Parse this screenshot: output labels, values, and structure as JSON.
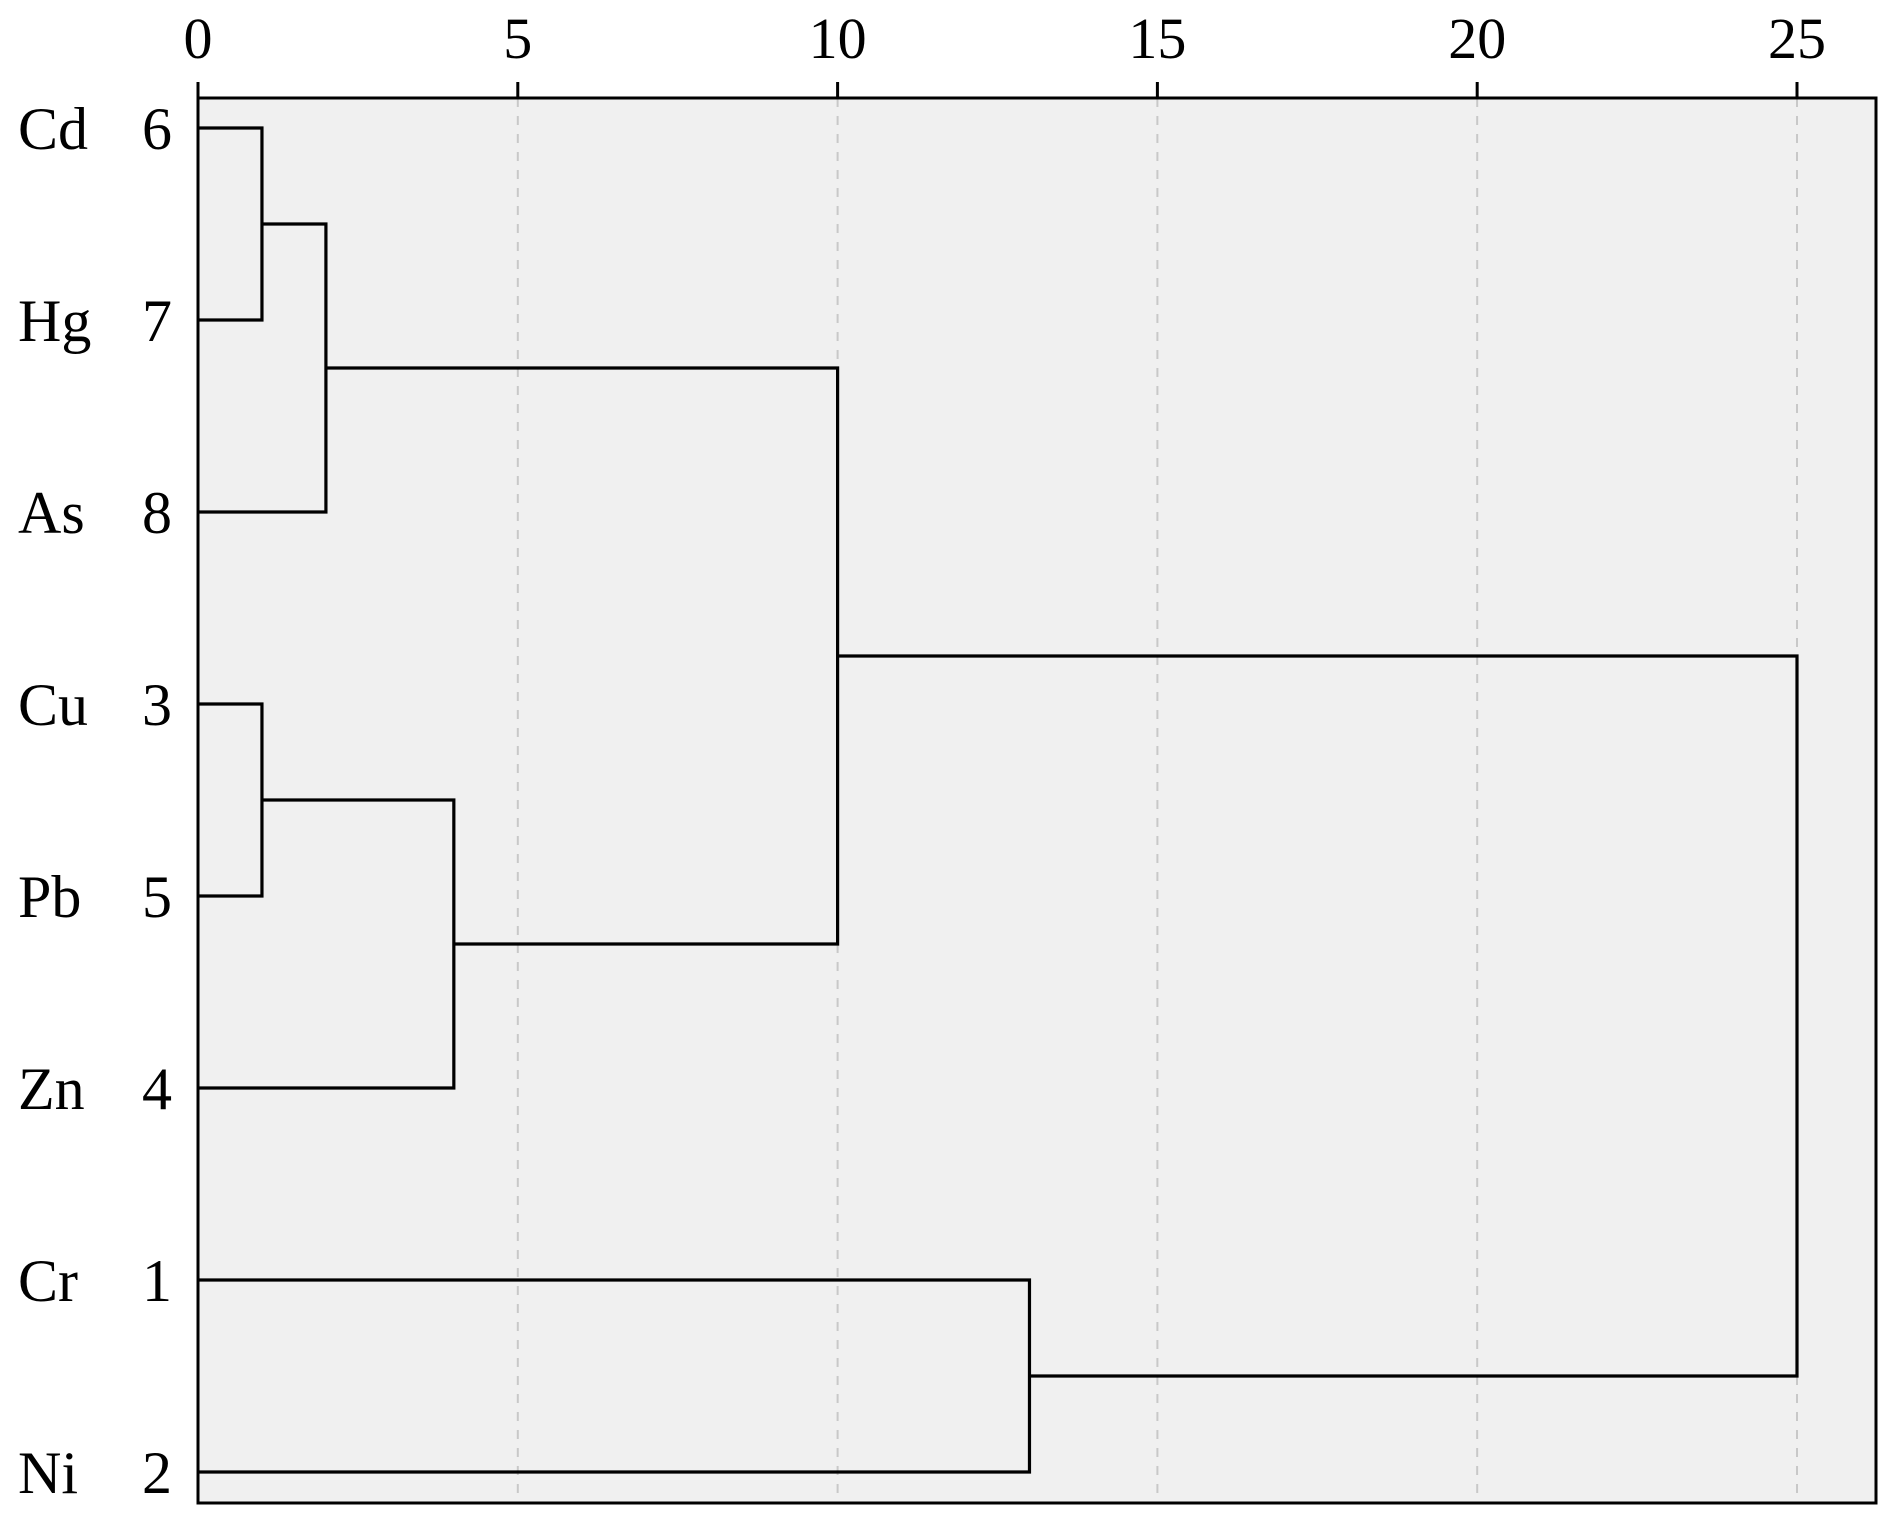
{
  "chart_data": {
    "type": "dendrogram",
    "title": "",
    "xlabel": "",
    "ylabel": "",
    "xlim": [
      0,
      26.3
    ],
    "x_ticks": [
      "0",
      "5",
      "10",
      "15",
      "20",
      "25"
    ],
    "x_tick_values": [
      0,
      5,
      10,
      15,
      20,
      25
    ],
    "grid": "vertical dashed",
    "leaves": [
      {
        "label": "Cd",
        "index": "6"
      },
      {
        "label": "Hg",
        "index": "7"
      },
      {
        "label": "As",
        "index": "8"
      },
      {
        "label": "Cu",
        "index": "3"
      },
      {
        "label": "Pb",
        "index": "5"
      },
      {
        "label": "Zn",
        "index": "4"
      },
      {
        "label": "Cr",
        "index": "1"
      },
      {
        "label": "Ni",
        "index": "2"
      }
    ],
    "merges": [
      {
        "left": "Cd",
        "right": "Hg",
        "distance": 1
      },
      {
        "left": "Cd+Hg",
        "right": "As",
        "distance": 2
      },
      {
        "left": "Cu",
        "right": "Pb",
        "distance": 1
      },
      {
        "left": "Cu+Pb",
        "right": "Zn",
        "distance": 4
      },
      {
        "left": "Cd+Hg+As",
        "right": "Cu+Pb+Zn",
        "distance": 10
      },
      {
        "left": "Cr",
        "right": "Ni",
        "distance": 13
      },
      {
        "left": "Cd+Hg+As+Cu+Pb+Zn",
        "right": "Cr+Ni",
        "distance": 25
      }
    ],
    "colors": {
      "plot_background": "#f0f0f0",
      "lines": "#000000",
      "grid": "#c8c8c8"
    }
  }
}
